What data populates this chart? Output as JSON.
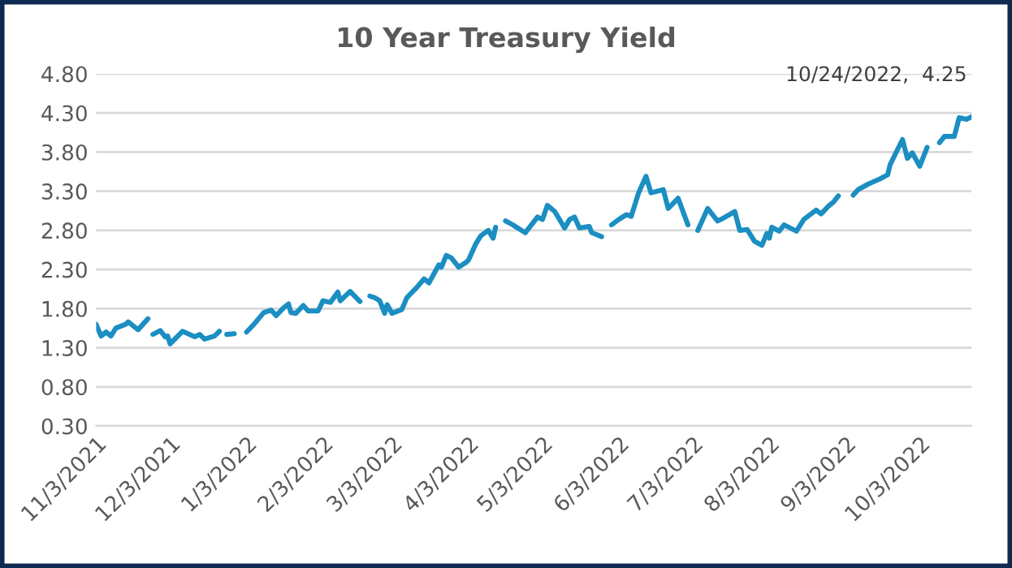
{
  "chart_data": {
    "type": "line",
    "title": "10 Year Treasury Yield",
    "x": [
      "2021-11-03",
      "2021-11-05",
      "2021-11-07",
      "2021-11-09",
      "2021-11-11",
      "2021-11-15",
      "2021-11-16",
      "2021-11-20",
      "2021-11-24",
      "2021-11-25",
      "2021-11-26",
      "2021-11-29",
      "2021-12-01",
      "2021-12-02",
      "2021-12-03",
      "2021-12-08",
      "2021-12-13",
      "2021-12-15",
      "2021-12-17",
      "2021-12-21",
      "2021-12-23",
      "2021-12-24",
      "2021-12-26",
      "2021-12-29",
      "2021-12-31",
      "2022-01-03",
      "2022-01-06",
      "2022-01-10",
      "2022-01-13",
      "2022-01-15",
      "2022-01-18",
      "2022-01-20",
      "2022-01-21",
      "2022-01-23",
      "2022-01-26",
      "2022-01-28",
      "2022-02-01",
      "2022-02-03",
      "2022-02-06",
      "2022-02-09",
      "2022-02-10",
      "2022-02-14",
      "2022-02-18",
      "2022-02-21",
      "2022-02-22",
      "2022-02-24",
      "2022-02-26",
      "2022-02-28",
      "2022-03-01",
      "2022-03-03",
      "2022-03-07",
      "2022-03-09",
      "2022-03-13",
      "2022-03-16",
      "2022-03-18",
      "2022-03-22",
      "2022-03-23",
      "2022-03-25",
      "2022-03-27",
      "2022-03-30",
      "2022-04-02",
      "2022-04-03",
      "2022-04-06",
      "2022-04-08",
      "2022-04-11",
      "2022-04-13",
      "2022-04-14",
      "2022-04-15",
      "2022-04-18",
      "2022-04-21",
      "2022-04-26",
      "2022-05-01",
      "2022-05-03",
      "2022-05-05",
      "2022-05-08",
      "2022-05-12",
      "2022-05-14",
      "2022-05-16",
      "2022-05-18",
      "2022-05-22",
      "2022-05-23",
      "2022-05-27",
      "2022-05-30",
      "2022-05-31",
      "2022-06-03",
      "2022-06-06",
      "2022-06-08",
      "2022-06-11",
      "2022-06-14",
      "2022-06-16",
      "2022-06-21",
      "2022-06-23",
      "2022-06-27",
      "2022-07-01",
      "2022-07-04",
      "2022-07-05",
      "2022-07-09",
      "2022-07-13",
      "2022-07-15",
      "2022-07-20",
      "2022-07-22",
      "2022-07-25",
      "2022-07-28",
      "2022-07-31",
      "2022-08-02",
      "2022-08-03",
      "2022-08-04",
      "2022-08-07",
      "2022-08-09",
      "2022-08-14",
      "2022-08-17",
      "2022-08-22",
      "2022-08-24",
      "2022-08-27",
      "2022-08-29",
      "2022-08-31",
      "2022-09-05",
      "2022-09-06",
      "2022-09-08",
      "2022-09-12",
      "2022-09-17",
      "2022-09-20",
      "2022-09-21",
      "2022-09-26",
      "2022-09-28",
      "2022-09-30",
      "2022-10-03",
      "2022-10-06",
      "2022-10-10",
      "2022-10-11",
      "2022-10-13",
      "2022-10-17",
      "2022-10-19",
      "2022-10-22",
      "2022-10-24"
    ],
    "series": [
      {
        "color": "#1b8ec2",
        "values": [
          1.6,
          1.45,
          1.5,
          1.45,
          1.55,
          1.6,
          1.63,
          1.53,
          1.67,
          null,
          1.47,
          1.52,
          1.44,
          1.45,
          1.35,
          1.51,
          1.44,
          1.47,
          1.41,
          1.45,
          1.51,
          null,
          1.47,
          1.48,
          null,
          1.5,
          1.6,
          1.75,
          1.78,
          1.71,
          1.81,
          1.86,
          1.75,
          1.74,
          1.84,
          1.77,
          1.77,
          1.9,
          1.88,
          2.01,
          1.9,
          2.02,
          1.89,
          null,
          1.96,
          1.94,
          1.9,
          1.74,
          1.85,
          1.74,
          1.79,
          1.94,
          2.07,
          2.18,
          2.13,
          2.36,
          2.33,
          2.48,
          2.45,
          2.33,
          2.39,
          2.42,
          2.63,
          2.73,
          2.8,
          2.7,
          2.84,
          null,
          2.92,
          2.87,
          2.77,
          2.97,
          2.94,
          3.12,
          3.04,
          2.83,
          2.94,
          2.97,
          2.83,
          2.85,
          2.77,
          2.72,
          null,
          2.87,
          2.94,
          3.0,
          2.98,
          3.28,
          3.49,
          3.28,
          3.32,
          3.08,
          3.21,
          2.87,
          null,
          2.8,
          3.08,
          2.92,
          2.95,
          3.04,
          2.8,
          2.81,
          2.66,
          2.61,
          2.76,
          2.7,
          2.84,
          2.79,
          2.87,
          2.79,
          2.94,
          3.06,
          3.01,
          3.11,
          3.16,
          3.24,
          null,
          3.25,
          3.32,
          3.39,
          3.46,
          3.51,
          3.64,
          3.96,
          3.72,
          3.79,
          3.62,
          3.86,
          null,
          3.92,
          4.0,
          4.0,
          4.24,
          4.22,
          4.25
        ]
      }
    ],
    "xlim": [
      "2021-11-03",
      "2022-10-24"
    ],
    "xticks": [
      {
        "value": "2021-11-03",
        "label": "11/3/2021"
      },
      {
        "value": "2021-12-03",
        "label": "12/3/2021"
      },
      {
        "value": "2022-01-03",
        "label": "1/3/2022"
      },
      {
        "value": "2022-02-03",
        "label": "2/3/2022"
      },
      {
        "value": "2022-03-03",
        "label": "3/3/2022"
      },
      {
        "value": "2022-04-03",
        "label": "4/3/2022"
      },
      {
        "value": "2022-05-03",
        "label": "5/3/2022"
      },
      {
        "value": "2022-06-03",
        "label": "6/3/2022"
      },
      {
        "value": "2022-07-03",
        "label": "7/3/2022"
      },
      {
        "value": "2022-08-03",
        "label": "8/3/2022"
      },
      {
        "value": "2022-09-03",
        "label": "9/3/2022"
      },
      {
        "value": "2022-10-03",
        "label": "10/3/2022"
      }
    ],
    "ylim": [
      0.3,
      4.8
    ],
    "yticks": [
      {
        "value": 0.3,
        "label": "0.30"
      },
      {
        "value": 0.8,
        "label": "0.80"
      },
      {
        "value": 1.3,
        "label": "1.30"
      },
      {
        "value": 1.8,
        "label": "1.80"
      },
      {
        "value": 2.3,
        "label": "2.30"
      },
      {
        "value": 2.8,
        "label": "2.80"
      },
      {
        "value": 3.3,
        "label": "3.30"
      },
      {
        "value": 3.8,
        "label": "3.80"
      },
      {
        "value": 4.3,
        "label": "4.30"
      },
      {
        "value": 4.8,
        "label": "4.80"
      }
    ],
    "grid": "y",
    "marker": "none",
    "line_style": "solid",
    "annotations": [
      {
        "text": "10/24/2022,  4.25",
        "x": "2022-10-24",
        "y": 4.25
      }
    ]
  }
}
